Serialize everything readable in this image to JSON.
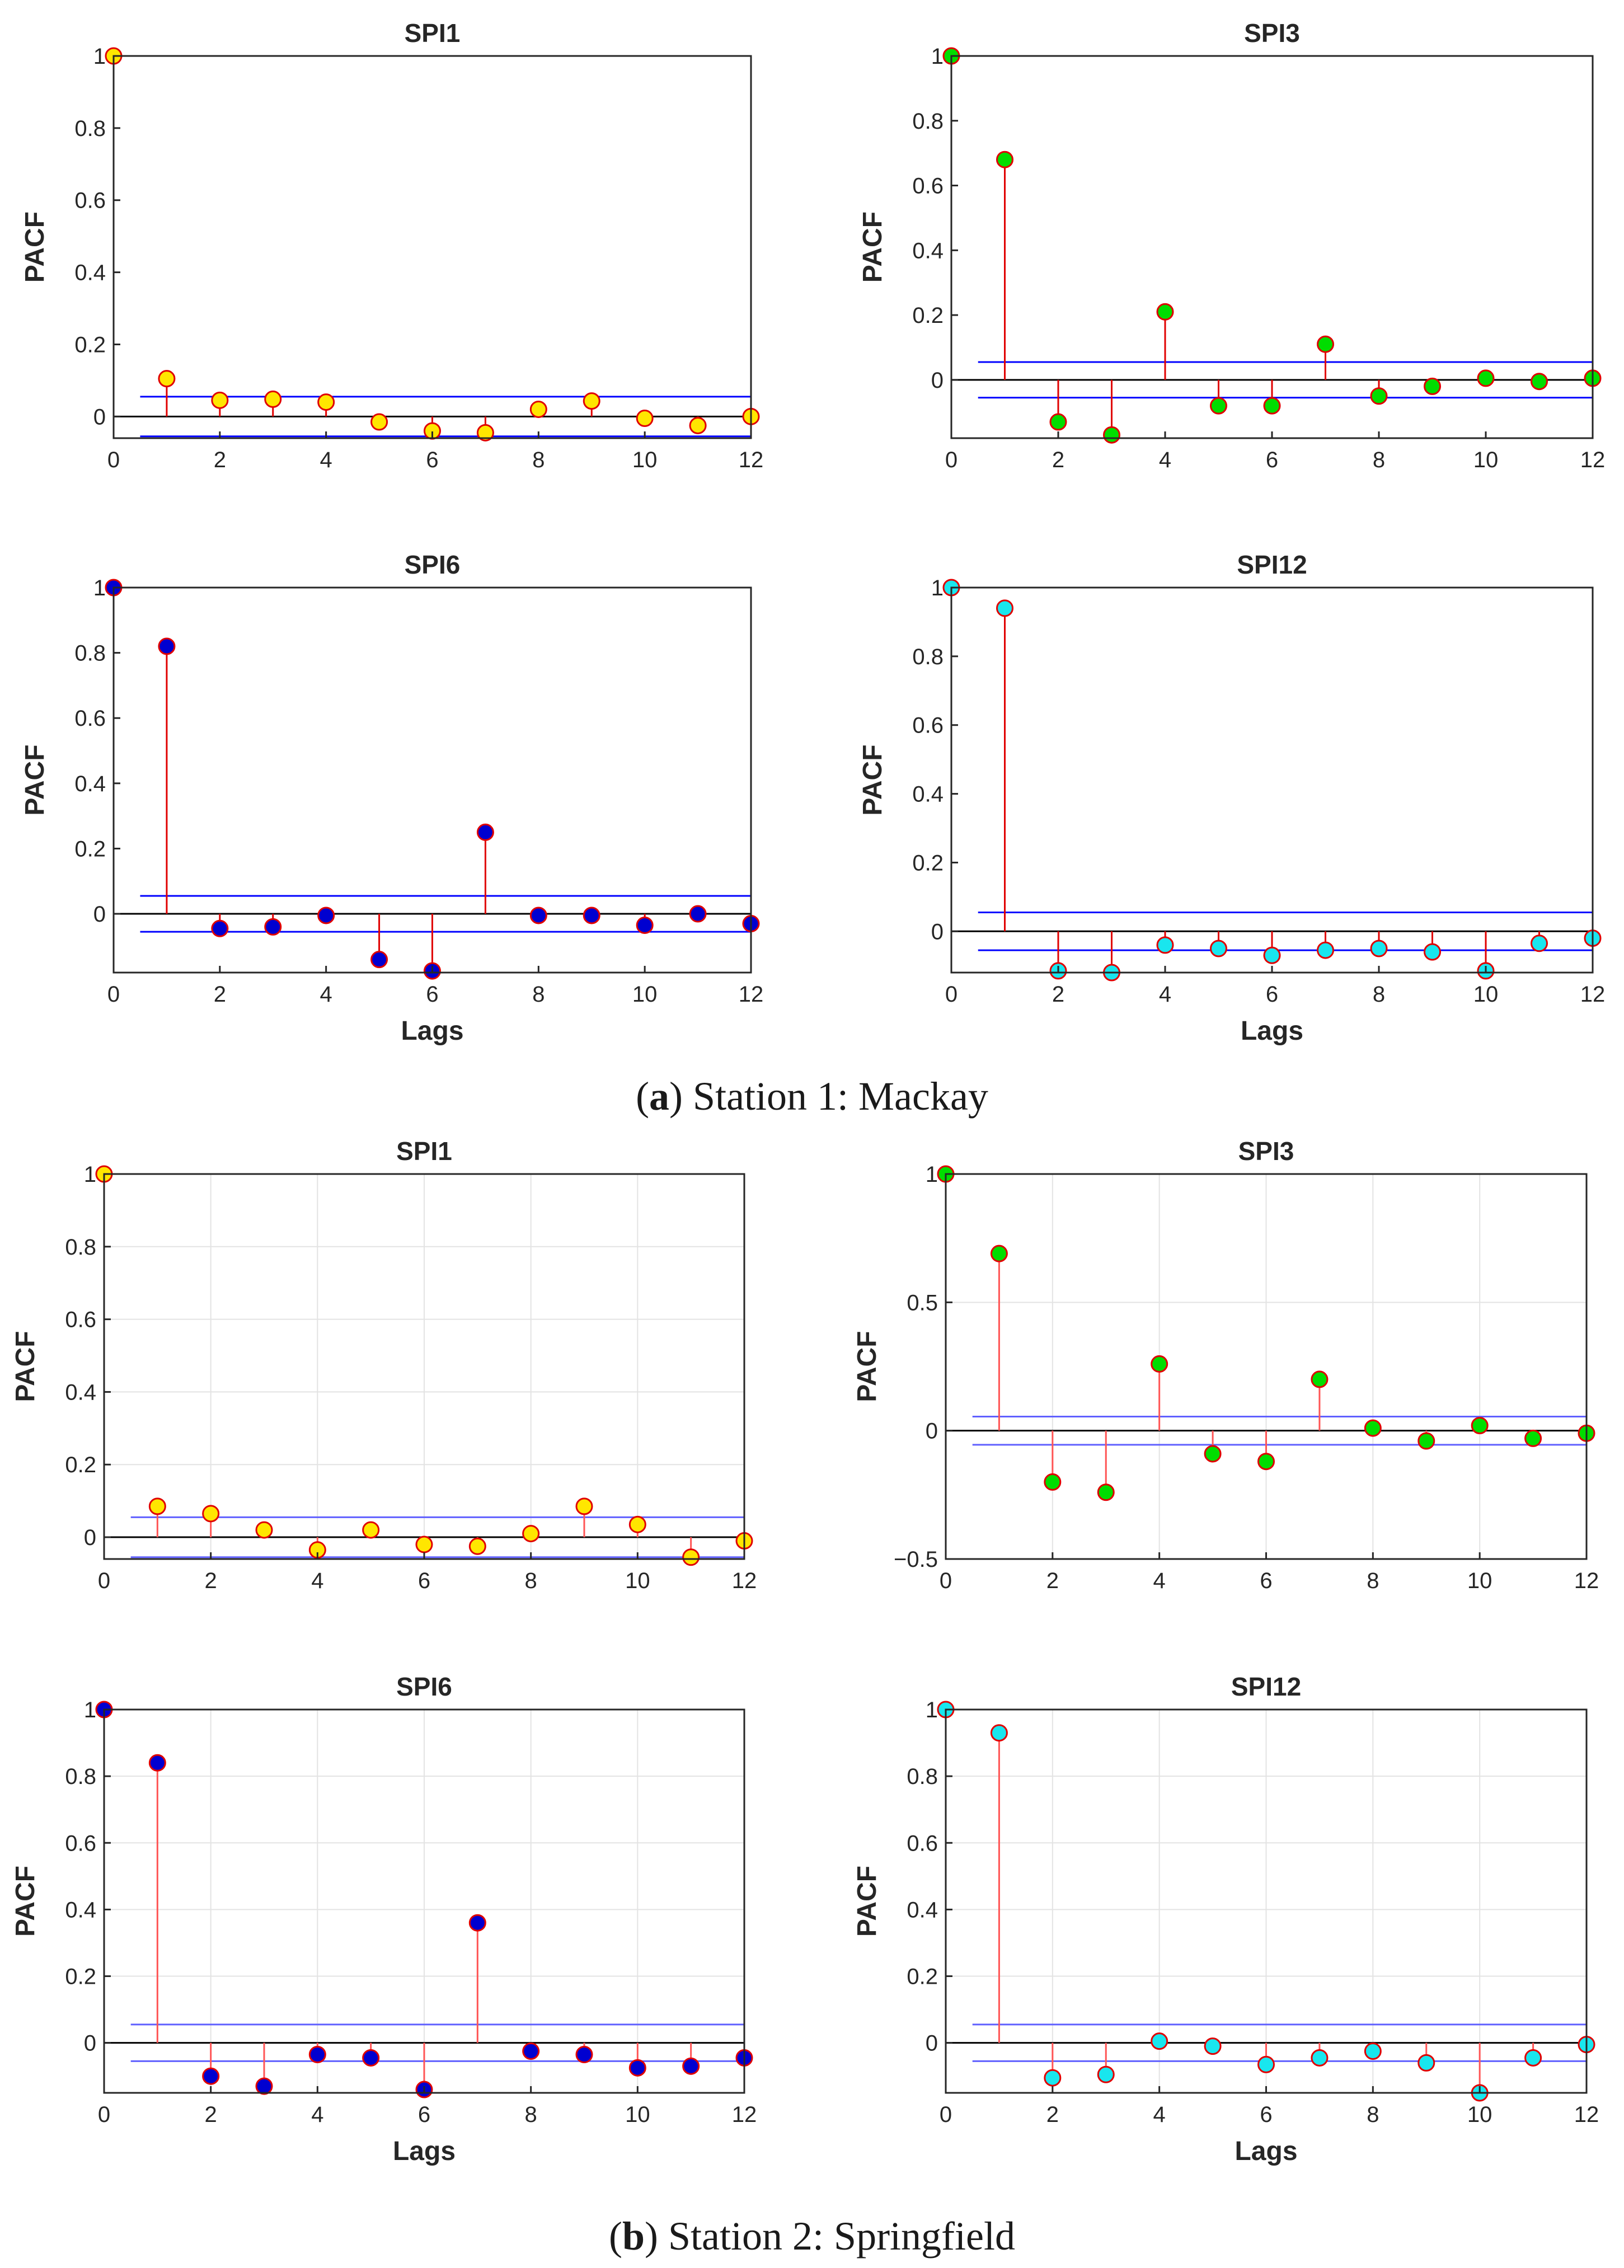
{
  "captions": [
    {
      "letter": "a",
      "text": ") Station 1: Mackay"
    },
    {
      "letter": "b",
      "text": ") Station 2: Springfield"
    }
  ],
  "colors": {
    "stem": "#e00000",
    "bound": "#0000ff",
    "marker_edge": "#e00000",
    "spi1": "#ffe600",
    "spi3": "#00dd00",
    "spi6": "#0000d0",
    "spi12": "#19e6ee"
  },
  "chart_data": [
    {
      "id": "a-spi1",
      "type": "stem",
      "title": "SPI1",
      "xlabel": "",
      "ylabel": "PACF",
      "x": [
        0,
        1,
        2,
        3,
        4,
        5,
        6,
        7,
        8,
        9,
        10,
        11,
        12
      ],
      "values": [
        1,
        0.105,
        0.045,
        0.048,
        0.04,
        -0.015,
        -0.04,
        -0.045,
        0.02,
        0.043,
        -0.005,
        -0.025,
        0
      ],
      "ylim": [
        -0.06,
        1.0
      ],
      "yticks": [
        0,
        0.2,
        0.4,
        0.6,
        0.8,
        1
      ],
      "ytick_labels": [
        "0",
        "0.2",
        "0.4",
        "0.6",
        "0.8",
        "1"
      ],
      "xticks": [
        0,
        2,
        4,
        6,
        8,
        10,
        12
      ],
      "xtick_labels": [
        "0",
        "2",
        "4",
        "6",
        "8",
        "10",
        "12"
      ],
      "bounds": [
        0.055,
        -0.055
      ],
      "marker_color": "#ffe600",
      "grid": false,
      "bound_color": "#0000ff",
      "stem_color": "#e00000"
    },
    {
      "id": "a-spi3",
      "type": "stem",
      "title": "SPI3",
      "xlabel": "",
      "ylabel": "PACF",
      "x": [
        0,
        1,
        2,
        3,
        4,
        5,
        6,
        7,
        8,
        9,
        10,
        11,
        12
      ],
      "values": [
        1,
        0.68,
        -0.13,
        -0.17,
        0.21,
        -0.08,
        -0.08,
        0.11,
        -0.05,
        -0.02,
        0.005,
        -0.005,
        0.005
      ],
      "ylim": [
        -0.18,
        1.0
      ],
      "yticks": [
        0,
        0.2,
        0.4,
        0.6,
        0.8,
        1
      ],
      "ytick_labels": [
        "0",
        "0.2",
        "0.4",
        "0.6",
        "0.8",
        "1"
      ],
      "xticks": [
        0,
        2,
        4,
        6,
        8,
        10,
        12
      ],
      "xtick_labels": [
        "0",
        "2",
        "4",
        "6",
        "8",
        "10",
        "12"
      ],
      "bounds": [
        0.055,
        -0.055
      ],
      "marker_color": "#00dd00",
      "grid": false,
      "bound_color": "#0000ff",
      "stem_color": "#e00000"
    },
    {
      "id": "a-spi6",
      "type": "stem",
      "title": "SPI6",
      "xlabel": "Lags",
      "ylabel": "PACF",
      "x": [
        0,
        1,
        2,
        3,
        4,
        5,
        6,
        7,
        8,
        9,
        10,
        11,
        12
      ],
      "values": [
        1,
        0.82,
        -0.045,
        -0.04,
        -0.005,
        -0.14,
        -0.175,
        0.25,
        -0.005,
        -0.005,
        -0.035,
        0,
        -0.03
      ],
      "ylim": [
        -0.18,
        1.0
      ],
      "yticks": [
        0,
        0.2,
        0.4,
        0.6,
        0.8,
        1
      ],
      "ytick_labels": [
        "0",
        "0.2",
        "0.4",
        "0.6",
        "0.8",
        "1"
      ],
      "xticks": [
        0,
        2,
        4,
        6,
        8,
        10,
        12
      ],
      "xtick_labels": [
        "0",
        "2",
        "4",
        "6",
        "8",
        "10",
        "12"
      ],
      "bounds": [
        0.055,
        -0.055
      ],
      "marker_color": "#0000d0",
      "grid": false,
      "bound_color": "#0000ff",
      "stem_color": "#e00000"
    },
    {
      "id": "a-spi12",
      "type": "stem",
      "title": "SPI12",
      "xlabel": "Lags",
      "ylabel": "PACF",
      "x": [
        0,
        1,
        2,
        3,
        4,
        5,
        6,
        7,
        8,
        9,
        10,
        11,
        12
      ],
      "values": [
        1,
        0.94,
        -0.115,
        -0.12,
        -0.04,
        -0.05,
        -0.07,
        -0.055,
        -0.05,
        -0.06,
        -0.115,
        -0.035,
        -0.02
      ],
      "ylim": [
        -0.12,
        1.0
      ],
      "yticks": [
        0,
        0.2,
        0.4,
        0.6,
        0.8,
        1
      ],
      "ytick_labels": [
        "0",
        "0.2",
        "0.4",
        "0.6",
        "0.8",
        "1"
      ],
      "xticks": [
        0,
        2,
        4,
        6,
        8,
        10,
        12
      ],
      "xtick_labels": [
        "0",
        "2",
        "4",
        "6",
        "8",
        "10",
        "12"
      ],
      "bounds": [
        0.055,
        -0.055
      ],
      "marker_color": "#19e6ee",
      "grid": false,
      "bound_color": "#0000ff",
      "stem_color": "#e00000"
    },
    {
      "id": "b-spi1",
      "type": "stem",
      "title": "SPI1",
      "xlabel": "",
      "ylabel": "PACF",
      "x": [
        0,
        1,
        2,
        3,
        4,
        5,
        6,
        7,
        8,
        9,
        10,
        11,
        12
      ],
      "values": [
        1,
        0.085,
        0.065,
        0.02,
        -0.035,
        0.02,
        -0.02,
        -0.025,
        0.01,
        0.085,
        0.035,
        -0.055,
        -0.01
      ],
      "ylim": [
        -0.06,
        1.0
      ],
      "yticks": [
        0,
        0.2,
        0.4,
        0.6,
        0.8,
        1
      ],
      "ytick_labels": [
        "0",
        "0.2",
        "0.4",
        "0.6",
        "0.8",
        "1"
      ],
      "xticks": [
        0,
        2,
        4,
        6,
        8,
        10,
        12
      ],
      "xtick_labels": [
        "0",
        "2",
        "4",
        "6",
        "8",
        "10",
        "12"
      ],
      "bounds": [
        0.055,
        -0.055
      ],
      "marker_color": "#ffe600",
      "grid": true,
      "bound_color": "#6060ff",
      "stem_color": "#ff5555"
    },
    {
      "id": "b-spi3",
      "type": "stem",
      "title": "SPI3",
      "xlabel": "",
      "ylabel": "PACF",
      "x": [
        0,
        1,
        2,
        3,
        4,
        5,
        6,
        7,
        8,
        9,
        10,
        11,
        12
      ],
      "values": [
        1,
        0.69,
        -0.2,
        -0.24,
        0.26,
        -0.09,
        -0.12,
        0.2,
        0.01,
        -0.04,
        0.02,
        -0.03,
        -0.01
      ],
      "ylim": [
        -0.5,
        1.0
      ],
      "yticks": [
        -0.5,
        0,
        0.5,
        1
      ],
      "ytick_labels": [
        "−0.5",
        "0",
        "0.5",
        "1"
      ],
      "xticks": [
        0,
        2,
        4,
        6,
        8,
        10,
        12
      ],
      "xtick_labels": [
        "0",
        "2",
        "4",
        "6",
        "8",
        "10",
        "12"
      ],
      "bounds": [
        0.055,
        -0.055
      ],
      "marker_color": "#00dd00",
      "grid": true,
      "bound_color": "#6060ff",
      "stem_color": "#ff5555"
    },
    {
      "id": "b-spi6",
      "type": "stem",
      "title": "SPI6",
      "xlabel": "Lags",
      "ylabel": "PACF",
      "x": [
        0,
        1,
        2,
        3,
        4,
        5,
        6,
        7,
        8,
        9,
        10,
        11,
        12
      ],
      "values": [
        1,
        0.84,
        -0.1,
        -0.13,
        -0.035,
        -0.045,
        -0.14,
        0.36,
        -0.025,
        -0.035,
        -0.075,
        -0.07,
        -0.045
      ],
      "ylim": [
        -0.15,
        1.0
      ],
      "yticks": [
        0,
        0.2,
        0.4,
        0.6,
        0.8,
        1
      ],
      "ytick_labels": [
        "0",
        "0.2",
        "0.4",
        "0.6",
        "0.8",
        "1"
      ],
      "xticks": [
        0,
        2,
        4,
        6,
        8,
        10,
        12
      ],
      "xtick_labels": [
        "0",
        "2",
        "4",
        "6",
        "8",
        "10",
        "12"
      ],
      "bounds": [
        0.055,
        -0.055
      ],
      "marker_color": "#0000d0",
      "grid": true,
      "bound_color": "#6060ff",
      "stem_color": "#ff5555"
    },
    {
      "id": "b-spi12",
      "type": "stem",
      "title": "SPI12",
      "xlabel": "Lags",
      "ylabel": "PACF",
      "x": [
        0,
        1,
        2,
        3,
        4,
        5,
        6,
        7,
        8,
        9,
        10,
        11,
        12
      ],
      "values": [
        1,
        0.93,
        -0.105,
        -0.095,
        0.005,
        -0.01,
        -0.065,
        -0.045,
        -0.025,
        -0.06,
        -0.15,
        -0.045,
        -0.005
      ],
      "ylim": [
        -0.15,
        1.0
      ],
      "yticks": [
        0,
        0.2,
        0.4,
        0.6,
        0.8,
        1
      ],
      "ytick_labels": [
        "0",
        "0.2",
        "0.4",
        "0.6",
        "0.8",
        "1"
      ],
      "xticks": [
        0,
        2,
        4,
        6,
        8,
        10,
        12
      ],
      "xtick_labels": [
        "0",
        "2",
        "4",
        "6",
        "8",
        "10",
        "12"
      ],
      "bounds": [
        0.055,
        -0.055
      ],
      "marker_color": "#19e6ee",
      "grid": true,
      "bound_color": "#6060ff",
      "stem_color": "#ff5555"
    }
  ]
}
